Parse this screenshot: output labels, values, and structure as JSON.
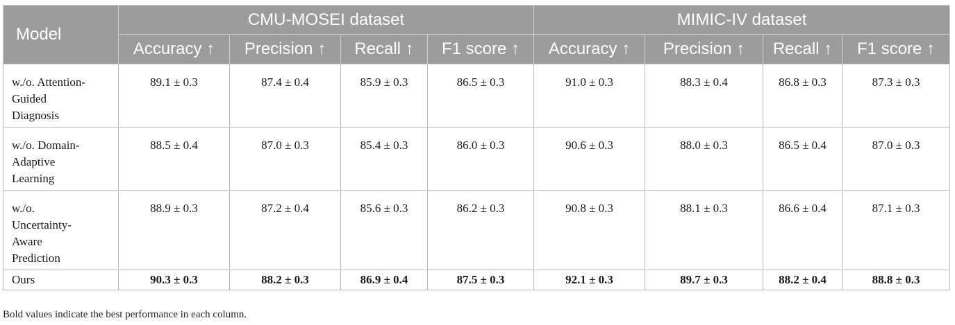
{
  "table": {
    "model_header": "Model",
    "groups": [
      "CMU-MOSEI dataset",
      "MIMIC-IV dataset"
    ],
    "metrics": [
      "Accuracy ↑",
      "Precision ↑",
      "Recall ↑",
      "F1 score ↑",
      "Accuracy ↑",
      "Precision ↑",
      "Recall ↑",
      "F1 score ↑"
    ],
    "rows": [
      {
        "model_lines": [
          "w./o. Attention-",
          "Guided",
          "Diagnosis"
        ],
        "values": [
          "89.1 ± 0.3",
          "87.4 ± 0.4",
          "85.9 ± 0.3",
          "86.5 ± 0.3",
          "91.0 ± 0.3",
          "88.3 ± 0.4",
          "86.8 ± 0.3",
          "87.3 ± 0.3"
        ]
      },
      {
        "model_lines": [
          "w./o. Domain-",
          "Adaptive",
          "Learning"
        ],
        "values": [
          "88.5 ± 0.4",
          "87.0 ± 0.3",
          "85.4 ± 0.3",
          "86.0 ± 0.3",
          "90.6 ± 0.3",
          "88.0 ± 0.3",
          "86.5 ± 0.4",
          "87.0 ± 0.3"
        ]
      },
      {
        "model_lines": [
          "w./o.",
          "Uncertainty-",
          "Aware",
          "Prediction"
        ],
        "values": [
          "88.9 ± 0.3",
          "87.2 ± 0.4",
          "85.6 ± 0.3",
          "86.2 ± 0.3",
          "90.8 ± 0.3",
          "88.1 ± 0.3",
          "86.6 ± 0.4",
          "87.1 ± 0.3"
        ]
      },
      {
        "model_lines": [
          "Ours"
        ],
        "values": [
          "90.3 ± 0.3",
          "88.2 ± 0.3",
          "86.9 ± 0.4",
          "87.5 ± 0.3",
          "92.1 ± 0.3",
          "89.7 ± 0.3",
          "88.2 ± 0.4",
          "88.8 ± 0.3"
        ]
      }
    ]
  },
  "footnote": "Bold values indicate the best performance in each column."
}
